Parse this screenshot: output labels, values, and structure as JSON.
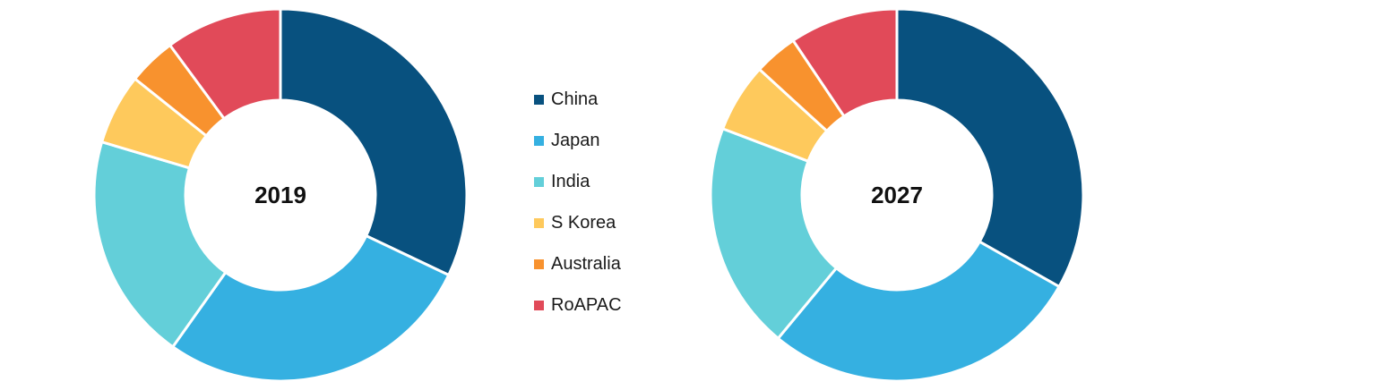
{
  "chart_data": [
    {
      "type": "pie",
      "center_label": "2019",
      "categories": [
        "China",
        "Japan",
        "India",
        "S Korea",
        "Australia",
        "RoAPAC"
      ],
      "values": [
        32.4,
        28.0,
        20.0,
        6.2,
        4.2,
        10.2
      ],
      "unit": "%"
    },
    {
      "type": "pie",
      "center_label": "2027",
      "categories": [
        "China",
        "Japan",
        "India",
        "S Korea",
        "Australia",
        "RoAPAC"
      ],
      "values": [
        33.2,
        27.8,
        19.8,
        6.0,
        3.8,
        9.4
      ],
      "unit": "%"
    }
  ],
  "legend": {
    "placement": "between charts",
    "items": [
      {
        "label": "China",
        "color": "#08517f"
      },
      {
        "label": "Japan",
        "color": "#35b0e1"
      },
      {
        "label": "India",
        "color": "#63cfd9"
      },
      {
        "label": "S Korea",
        "color": "#fec95c"
      },
      {
        "label": "Australia",
        "color": "#f8922e"
      },
      {
        "label": "RoAPAC",
        "color": "#e14a59"
      }
    ]
  }
}
